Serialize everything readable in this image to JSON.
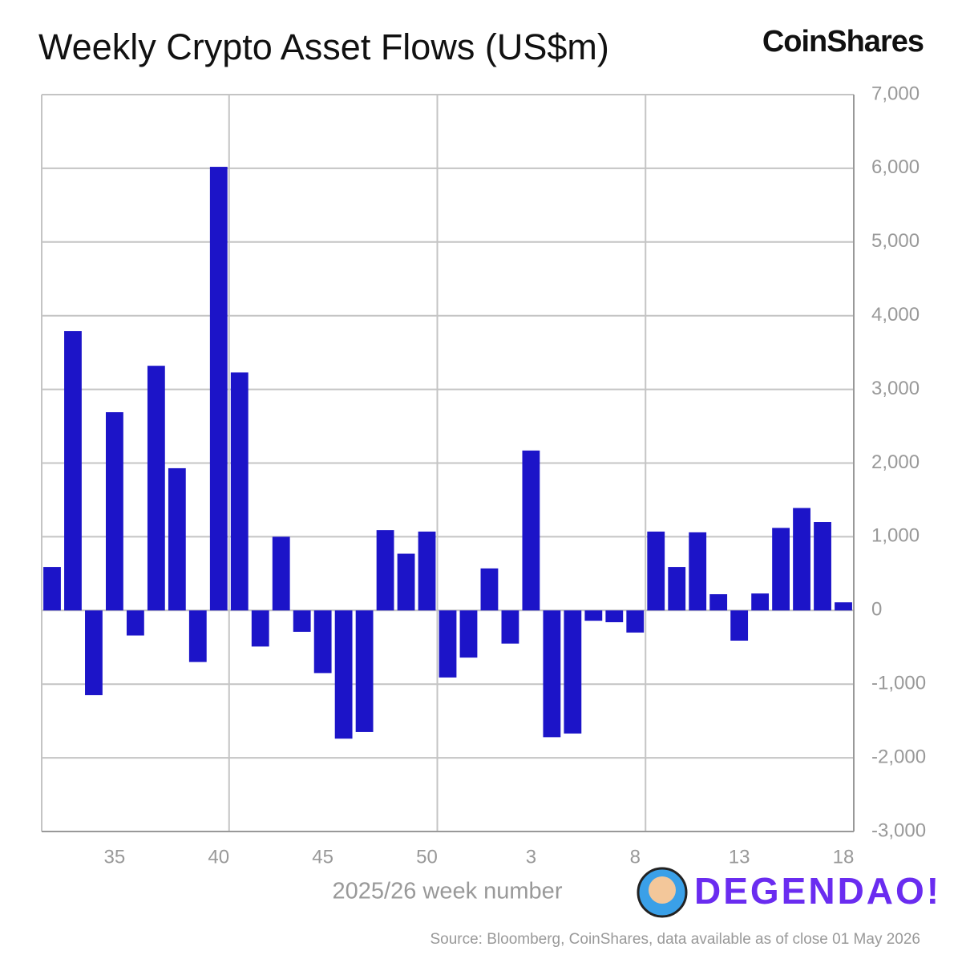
{
  "chart_data": {
    "type": "bar",
    "title": "Weekly Crypto Asset Flows (US$m)",
    "brand": "CoinShares",
    "watermark": "DEGENDAO!",
    "x_label": "2025/26 week number",
    "source": "Source: Bloomberg, CoinShares, data available as of close 01 May 2026",
    "categories": [
      null,
      null,
      null,
      "35",
      null,
      null,
      null,
      null,
      "40",
      null,
      null,
      null,
      null,
      "45",
      null,
      null,
      null,
      null,
      "50",
      null,
      null,
      null,
      null,
      "3",
      null,
      null,
      null,
      null,
      "8",
      null,
      null,
      null,
      null,
      "13",
      null,
      null,
      null,
      null,
      "18"
    ],
    "values": [
      590,
      3790,
      -1150,
      2690,
      -340,
      3320,
      1930,
      -700,
      6020,
      3230,
      -490,
      1000,
      -290,
      -850,
      -1740,
      -1650,
      1090,
      770,
      1070,
      -910,
      -640,
      570,
      -450,
      2170,
      -1720,
      -1670,
      -140,
      -160,
      -300,
      1070,
      590,
      1060,
      220,
      -410,
      230,
      1120,
      1390,
      1200,
      110
    ],
    "color": "#1c14c8",
    "ylim": [
      -3000,
      7000
    ],
    "yticks": [
      {
        "value": -3000,
        "label": "-3,000"
      },
      {
        "value": -2000,
        "label": "-2,000"
      },
      {
        "value": -1000,
        "label": "-1,000"
      },
      0,
      {
        "value": 1000,
        "label": "1,000"
      },
      {
        "value": 2000,
        "label": "2,000"
      },
      {
        "value": 3000,
        "label": "3,000"
      },
      {
        "value": 4000,
        "label": "4,000"
      },
      {
        "value": 5000,
        "label": "5,000"
      },
      {
        "value": 6000,
        "label": "6,000"
      },
      {
        "value": 7000,
        "label": "7,000"
      }
    ],
    "grid": true
  }
}
